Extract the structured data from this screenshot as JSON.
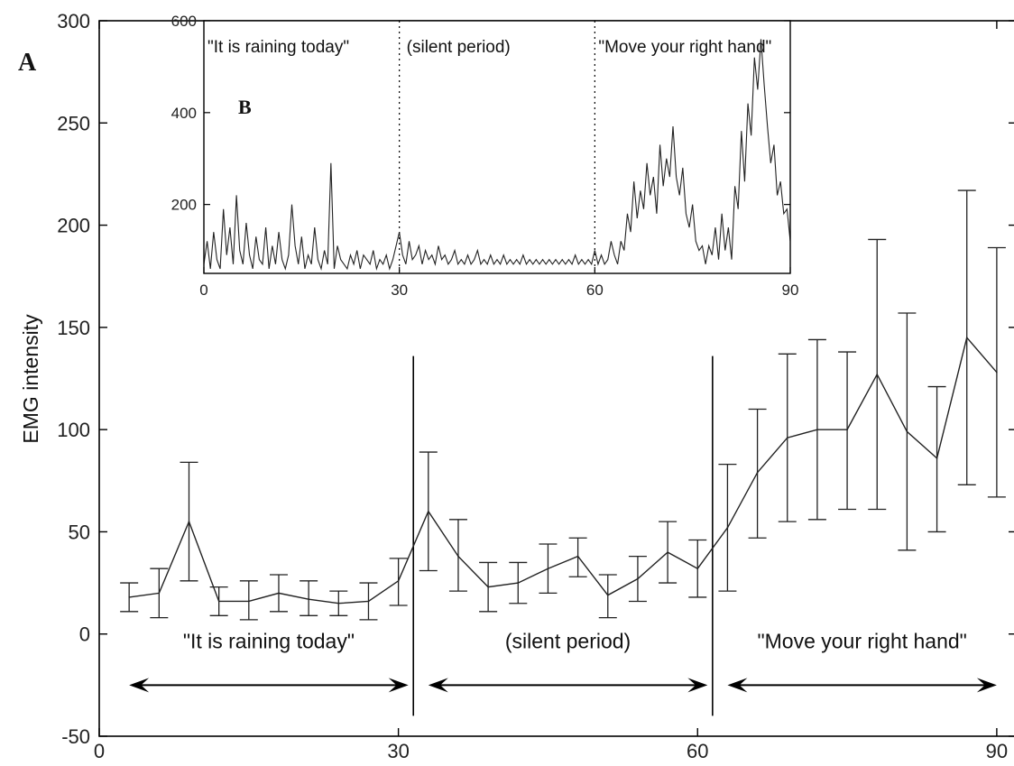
{
  "chart_data": [
    {
      "type": "line",
      "panel_label": "A",
      "ylabel": "EMG intensity",
      "xlim": [
        0,
        92
      ],
      "ylim": [
        -50,
        300
      ],
      "xticks": [
        0,
        30,
        60,
        90
      ],
      "yticks": [
        -50,
        0,
        50,
        100,
        150,
        200,
        250,
        300
      ],
      "error_bars": true,
      "x": [
        3,
        6,
        9,
        12,
        15,
        18,
        21,
        24,
        27,
        30,
        33,
        36,
        39,
        42,
        45,
        48,
        51,
        54,
        57,
        60,
        63,
        66,
        69,
        72,
        75,
        78,
        81,
        84,
        87,
        90
      ],
      "values": [
        18,
        20,
        55,
        16,
        16,
        20,
        17,
        15,
        16,
        26,
        60,
        38,
        23,
        25,
        32,
        38,
        19,
        27,
        40,
        32,
        52,
        79,
        96,
        100,
        100,
        127,
        99,
        86,
        145,
        128
      ],
      "lower": [
        11,
        8,
        26,
        9,
        7,
        11,
        9,
        9,
        7,
        14,
        31,
        21,
        11,
        15,
        20,
        28,
        8,
        16,
        25,
        18,
        21,
        47,
        55,
        56,
        61,
        61,
        41,
        50,
        73,
        67
      ],
      "upper": [
        25,
        32,
        84,
        23,
        26,
        29,
        26,
        21,
        25,
        37,
        89,
        56,
        35,
        35,
        44,
        47,
        29,
        38,
        55,
        46,
        83,
        110,
        137,
        144,
        138,
        193,
        157,
        121,
        217,
        189
      ],
      "dividers": [
        31.5,
        61.5
      ],
      "segments": [
        {
          "label": "\"It is raining today\"",
          "x_start": 3,
          "x_end": 31
        },
        {
          "label": "(silent period)",
          "x_start": 33,
          "x_end": 61
        },
        {
          "label": "\"Move your right hand\"",
          "x_start": 63,
          "x_end": 90
        }
      ]
    },
    {
      "type": "line",
      "panel_label": "B",
      "inset": true,
      "xlim": [
        0,
        90
      ],
      "ylim": [
        50,
        600
      ],
      "xticks": [
        0,
        30,
        60,
        90
      ],
      "yticks": [
        200,
        400,
        600
      ],
      "dividers": [
        30,
        60
      ],
      "segments": [
        {
          "label": "\"It is raining today\"",
          "x_start": 0,
          "x_end": 30
        },
        {
          "label": "(silent period)",
          "x_start": 30,
          "x_end": 60
        },
        {
          "label": "\"Move your right hand\"",
          "x_start": 60,
          "x_end": 90
        }
      ],
      "x": [
        0,
        0.5,
        1,
        1.5,
        2,
        2.5,
        3,
        3.5,
        4,
        4.5,
        5,
        5.5,
        6,
        6.5,
        7,
        7.5,
        8,
        8.5,
        9,
        9.5,
        10,
        10.5,
        11,
        11.5,
        12,
        12.5,
        13,
        13.5,
        14,
        14.5,
        15,
        15.5,
        16,
        16.5,
        17,
        17.5,
        18,
        18.5,
        19,
        19.5,
        20,
        20.5,
        21,
        21.5,
        22,
        22.5,
        23,
        23.5,
        24,
        24.5,
        25,
        25.5,
        26,
        26.5,
        27,
        27.5,
        28,
        28.5,
        29,
        29.5,
        30,
        30.5,
        31,
        31.5,
        32,
        32.5,
        33,
        33.5,
        34,
        34.5,
        35,
        35.5,
        36,
        36.5,
        37,
        37.5,
        38,
        38.5,
        39,
        39.5,
        40,
        40.5,
        41,
        41.5,
        42,
        42.5,
        43,
        43.5,
        44,
        44.5,
        45,
        45.5,
        46,
        46.5,
        47,
        47.5,
        48,
        48.5,
        49,
        49.5,
        50,
        50.5,
        51,
        51.5,
        52,
        52.5,
        53,
        53.5,
        54,
        54.5,
        55,
        55.5,
        56,
        56.5,
        57,
        57.5,
        58,
        58.5,
        59,
        59.5,
        60,
        60.5,
        61,
        61.5,
        62,
        62.5,
        63,
        63.5,
        64,
        64.5,
        65,
        65.5,
        66,
        66.5,
        67,
        67.5,
        68,
        68.5,
        69,
        69.5,
        70,
        70.5,
        71,
        71.5,
        72,
        72.5,
        73,
        73.5,
        74,
        74.5,
        75,
        75.5,
        76,
        76.5,
        77,
        77.5,
        78,
        78.5,
        79,
        79.5,
        80,
        80.5,
        81,
        81.5,
        82,
        82.5,
        83,
        83.5,
        84,
        84.5,
        85,
        85.5,
        86,
        86.5,
        87,
        87.5,
        88,
        88.5,
        89,
        89.5,
        90
      ],
      "values": [
        70,
        120,
        60,
        140,
        80,
        60,
        190,
        90,
        150,
        70,
        220,
        100,
        70,
        160,
        90,
        60,
        130,
        80,
        70,
        150,
        60,
        110,
        70,
        140,
        80,
        60,
        90,
        200,
        110,
        70,
        130,
        60,
        90,
        70,
        150,
        80,
        60,
        100,
        70,
        290,
        60,
        110,
        80,
        70,
        60,
        90,
        70,
        100,
        60,
        90,
        80,
        70,
        100,
        60,
        80,
        70,
        90,
        60,
        80,
        110,
        140,
        90,
        70,
        120,
        80,
        90,
        110,
        70,
        100,
        80,
        90,
        70,
        110,
        80,
        90,
        70,
        80,
        100,
        70,
        80,
        70,
        90,
        70,
        80,
        100,
        70,
        80,
        70,
        90,
        70,
        80,
        70,
        90,
        70,
        80,
        70,
        80,
        70,
        90,
        70,
        80,
        70,
        80,
        70,
        80,
        70,
        80,
        70,
        80,
        70,
        80,
        70,
        80,
        70,
        90,
        70,
        80,
        70,
        80,
        70,
        100,
        70,
        90,
        70,
        80,
        120,
        90,
        70,
        120,
        100,
        180,
        140,
        250,
        170,
        230,
        190,
        290,
        220,
        260,
        180,
        330,
        240,
        300,
        260,
        370,
        260,
        220,
        280,
        180,
        150,
        200,
        120,
        100,
        110,
        70,
        110,
        90,
        150,
        80,
        180,
        100,
        150,
        80,
        240,
        190,
        360,
        250,
        420,
        350,
        520,
        450,
        560,
        460,
        370,
        290,
        330,
        220,
        250,
        180,
        190,
        120
      ]
    }
  ]
}
